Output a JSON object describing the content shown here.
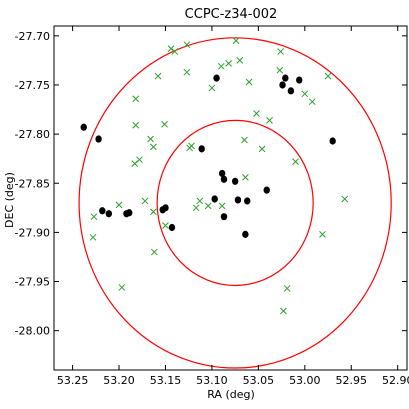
{
  "chart_data": {
    "type": "scatter",
    "title": "CCPC-z34-002",
    "xlabel": "RA (deg)",
    "ylabel": "DEC (deg)",
    "xlim": [
      53.27,
      52.89
    ],
    "ylim": [
      -28.04,
      -27.69
    ],
    "x_ticks": [
      53.25,
      53.2,
      53.15,
      53.1,
      53.05,
      53.0,
      52.95,
      52.9
    ],
    "x_tick_labels": [
      "53.25",
      "53.20",
      "53.15",
      "53.10",
      "53.05",
      "53.00",
      "52.95",
      "52.90"
    ],
    "y_ticks": [
      -27.7,
      -27.75,
      -27.8,
      -27.85,
      -27.9,
      -27.95,
      -28.0
    ],
    "y_tick_labels": [
      "-27.70",
      "-27.75",
      "-27.80",
      "-27.85",
      "-27.90",
      "-27.95",
      "-28.00"
    ],
    "grid": false,
    "colors": {
      "members": "#000000",
      "others": "#2ca02c",
      "circles": "#ff0000"
    },
    "circles": [
      {
        "center": [
          53.075,
          -27.87
        ],
        "radius_deg": 0.084
      },
      {
        "center": [
          53.075,
          -27.87
        ],
        "radius_deg": 0.168
      }
    ],
    "series": [
      {
        "marker": "dot",
        "points": [
          [
            53.238,
            -27.793
          ],
          [
            53.222,
            -27.805
          ],
          [
            53.218,
            -27.878
          ],
          [
            53.211,
            -27.881
          ],
          [
            53.192,
            -27.881
          ],
          [
            53.189,
            -27.88
          ],
          [
            53.153,
            -27.877
          ],
          [
            53.15,
            -27.875
          ],
          [
            53.143,
            -27.895
          ],
          [
            53.111,
            -27.815
          ],
          [
            53.095,
            -27.743
          ],
          [
            53.089,
            -27.84
          ],
          [
            53.087,
            -27.846
          ],
          [
            53.097,
            -27.866
          ],
          [
            53.087,
            -27.884
          ],
          [
            53.075,
            -27.848
          ],
          [
            53.072,
            -27.867
          ],
          [
            53.064,
            -27.902
          ],
          [
            53.062,
            -27.868
          ],
          [
            53.041,
            -27.857
          ],
          [
            53.024,
            -27.75
          ],
          [
            53.021,
            -27.743
          ],
          [
            53.015,
            -27.756
          ],
          [
            53.006,
            -27.745
          ],
          [
            52.97,
            -27.807
          ]
        ]
      },
      {
        "marker": "x",
        "points": [
          [
            53.227,
            -27.884
          ],
          [
            53.228,
            -27.905
          ],
          [
            53.2,
            -27.872
          ],
          [
            53.197,
            -27.956
          ],
          [
            53.182,
            -27.764
          ],
          [
            53.182,
            -27.791
          ],
          [
            53.178,
            -27.826
          ],
          [
            53.183,
            -27.83
          ],
          [
            53.172,
            -27.868
          ],
          [
            53.166,
            -27.805
          ],
          [
            53.163,
            -27.813
          ],
          [
            53.163,
            -27.879
          ],
          [
            53.162,
            -27.92
          ],
          [
            53.158,
            -27.741
          ],
          [
            53.151,
            -27.79
          ],
          [
            53.15,
            -27.893
          ],
          [
            53.144,
            -27.713
          ],
          [
            53.14,
            -27.716
          ],
          [
            53.127,
            -27.709
          ],
          [
            53.127,
            -27.737
          ],
          [
            53.124,
            -27.814
          ],
          [
            53.122,
            -27.812
          ],
          [
            53.117,
            -27.875
          ],
          [
            53.113,
            -27.868
          ],
          [
            53.104,
            -27.873
          ],
          [
            53.1,
            -27.753
          ],
          [
            53.09,
            -27.731
          ],
          [
            53.089,
            -27.873
          ],
          [
            53.082,
            -27.728
          ],
          [
            53.074,
            -27.705
          ],
          [
            53.07,
            -27.725
          ],
          [
            53.065,
            -27.806
          ],
          [
            53.064,
            -27.844
          ],
          [
            53.06,
            -27.747
          ],
          [
            53.052,
            -27.779
          ],
          [
            53.046,
            -27.815
          ],
          [
            53.038,
            -27.786
          ],
          [
            53.026,
            -27.716
          ],
          [
            53.027,
            -27.735
          ],
          [
            53.023,
            -27.98
          ],
          [
            53.019,
            -27.957
          ],
          [
            53.01,
            -27.828
          ],
          [
            53.0,
            -27.759
          ],
          [
            52.992,
            -27.767
          ],
          [
            52.981,
            -27.902
          ],
          [
            52.975,
            -27.741
          ],
          [
            52.957,
            -27.866
          ]
        ]
      }
    ]
  }
}
